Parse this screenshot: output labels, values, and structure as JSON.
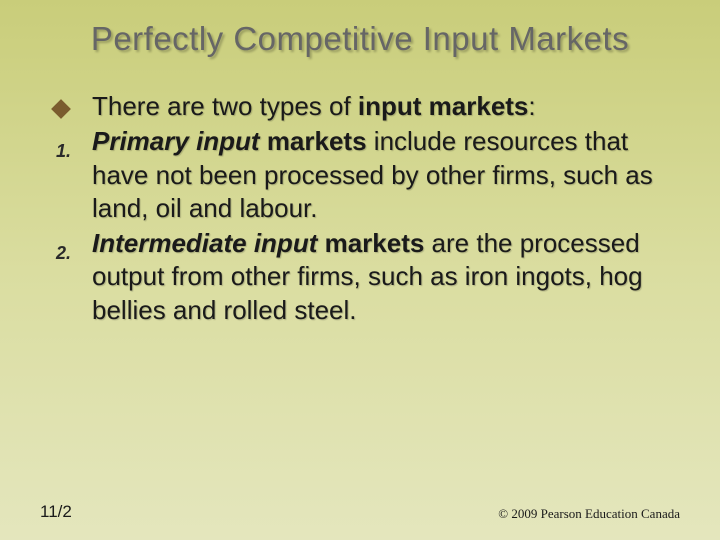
{
  "slide": {
    "background_gradient": [
      "#c9cd7a",
      "#ced285",
      "#dadda0",
      "#e4e6bd"
    ],
    "title": "Perfectly Competitive Input Markets",
    "title_color": "#666666",
    "title_fontsize": 33,
    "body_fontsize": 26,
    "text_color": "#1a1a1a",
    "bullet_diamond_color": "#7a5c2e",
    "items": [
      {
        "marker_type": "diamond",
        "html": "There are two types of <b>input markets</b>:"
      },
      {
        "marker_type": "number",
        "marker": "1.",
        "html": "<b><i>Primary input</i> markets</b> include resources that have not been processed by other firms, such as land, oil and labour."
      },
      {
        "marker_type": "number",
        "marker": "2.",
        "html": "<b><i>Intermediate input</i> markets</b> are the processed output from other firms, such as iron ingots, hog bellies and rolled steel."
      }
    ],
    "footer": {
      "page": "11/2",
      "copyright": "© 2009 Pearson Education Canada"
    }
  }
}
